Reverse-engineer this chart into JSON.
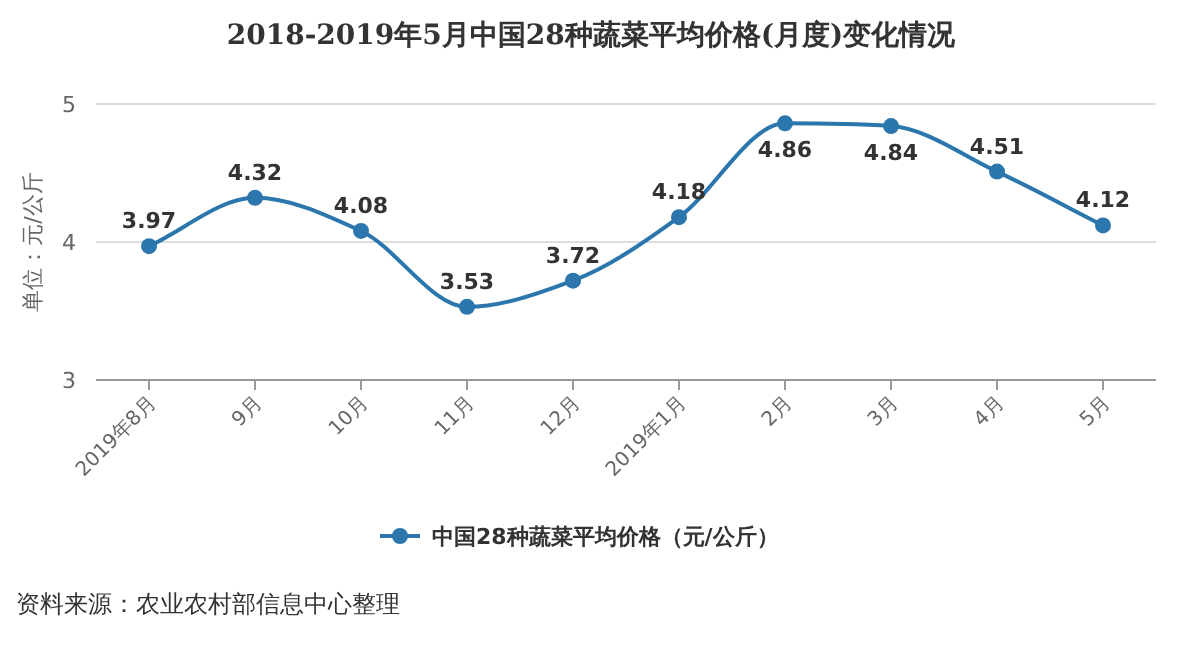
{
  "chart_data": {
    "type": "line",
    "title": "2018-2019年5月中国28种蔬菜平均价格(月度)变化情况",
    "categories": [
      "2019年8月",
      "9月",
      "10月",
      "11月",
      "12月",
      "2019年1月",
      "2月",
      "3月",
      "4月",
      "5月"
    ],
    "series": [
      {
        "name": "中国28种蔬菜平均价格（元/公斤）",
        "color": "#2a76ad",
        "values": [
          3.97,
          4.32,
          4.08,
          3.53,
          3.72,
          4.18,
          4.86,
          4.84,
          4.51,
          4.12
        ]
      }
    ],
    "ylabel": "单位：元/公斤",
    "ylim": [
      3,
      5
    ],
    "yticks": [
      3,
      4,
      5
    ],
    "grid": "y",
    "legend": "bottom",
    "marker": "circle",
    "line_style": "solid",
    "data_labels": true,
    "annotations": [
      "资料来源：农业农村部信息中心整理"
    ]
  }
}
